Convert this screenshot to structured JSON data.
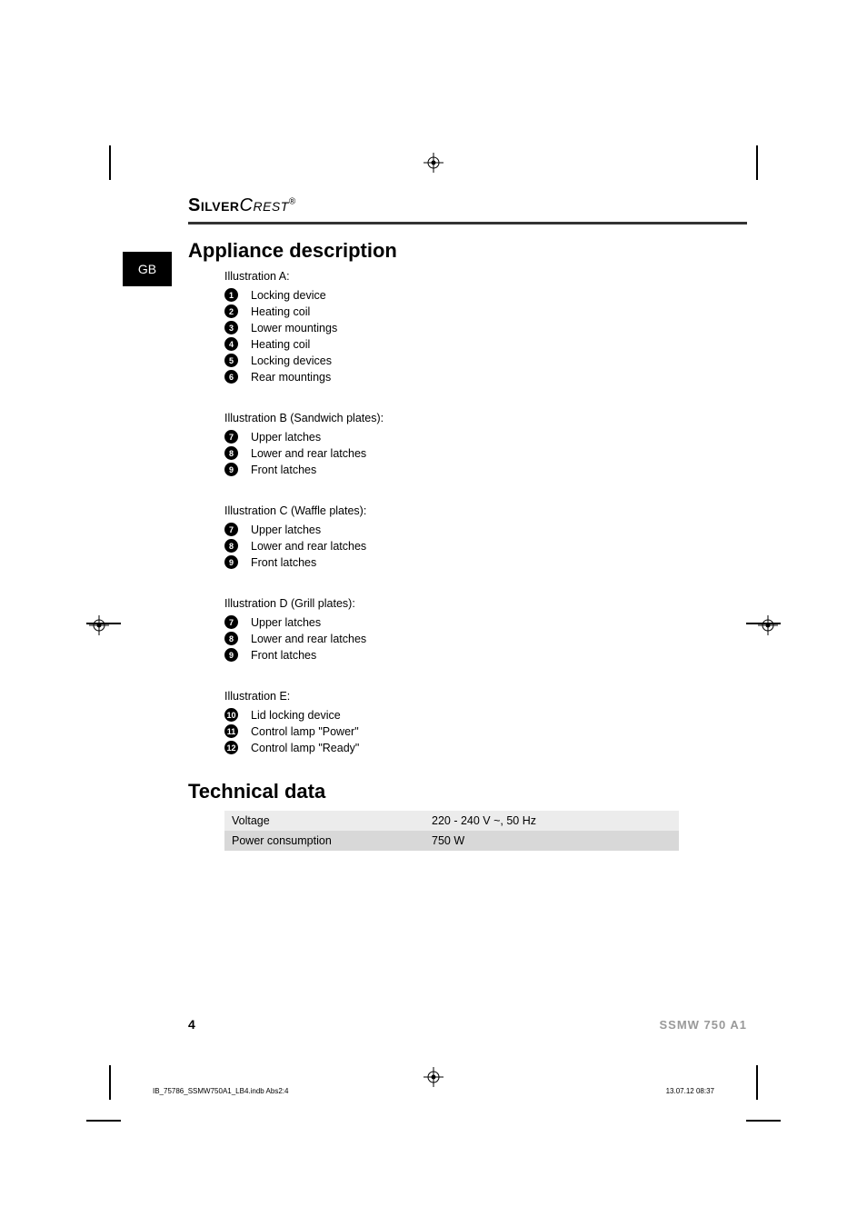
{
  "brand": {
    "bold": "Silver",
    "light": "Crest",
    "reg": "®"
  },
  "lang_box": "GB",
  "section1": {
    "title": "Appliance description",
    "groups": [
      {
        "heading": "Illustration A:",
        "items": [
          {
            "n": "1",
            "t": "Locking device"
          },
          {
            "n": "2",
            "t": "Heating coil"
          },
          {
            "n": "3",
            "t": "Lower mountings"
          },
          {
            "n": "4",
            "t": "Heating coil"
          },
          {
            "n": "5",
            "t": "Locking devices"
          },
          {
            "n": "6",
            "t": "Rear mountings"
          }
        ]
      },
      {
        "heading": "Illustration B (Sandwich plates):",
        "items": [
          {
            "n": "7",
            "t": "Upper latches"
          },
          {
            "n": "8",
            "t": "Lower and rear latches"
          },
          {
            "n": "9",
            "t": "Front latches"
          }
        ]
      },
      {
        "heading": "Illustration C (Waffle plates):",
        "items": [
          {
            "n": "7",
            "t": "Upper latches"
          },
          {
            "n": "8",
            "t": "Lower and rear latches"
          },
          {
            "n": "9",
            "t": "Front latches"
          }
        ]
      },
      {
        "heading": "Illustration D (Grill plates):",
        "items": [
          {
            "n": "7",
            "t": "Upper latches"
          },
          {
            "n": "8",
            "t": "Lower and rear latches"
          },
          {
            "n": "9",
            "t": "Front latches"
          }
        ]
      },
      {
        "heading": "Illustration E:",
        "items": [
          {
            "n": "10",
            "t": "Lid locking device"
          },
          {
            "n": "11",
            "t": "Control lamp \"Power\""
          },
          {
            "n": "12",
            "t": "Control lamp \"Ready\""
          }
        ]
      }
    ]
  },
  "section2": {
    "title": "Technical data",
    "rows": [
      [
        "Voltage",
        "220 - 240 V ~, 50 Hz"
      ],
      [
        "Power consumption",
        "750 W"
      ]
    ],
    "row_bg": [
      "#ececec",
      "#d8d8d8"
    ]
  },
  "footer": {
    "page": "4",
    "code": "SSMW 750 A1"
  },
  "imposition": {
    "file": "IB_75786_SSMW750A1_LB4.indb   Abs2:4",
    "ts": "13.07.12   08:37"
  },
  "style": {
    "body_font": "Trebuchet MS",
    "h1_fontsize": 22,
    "text_fontsize": 12.5,
    "circle_bg": "#000000",
    "circle_fg": "#ffffff",
    "rule_color": "#333333",
    "accent_color": "#999999"
  }
}
